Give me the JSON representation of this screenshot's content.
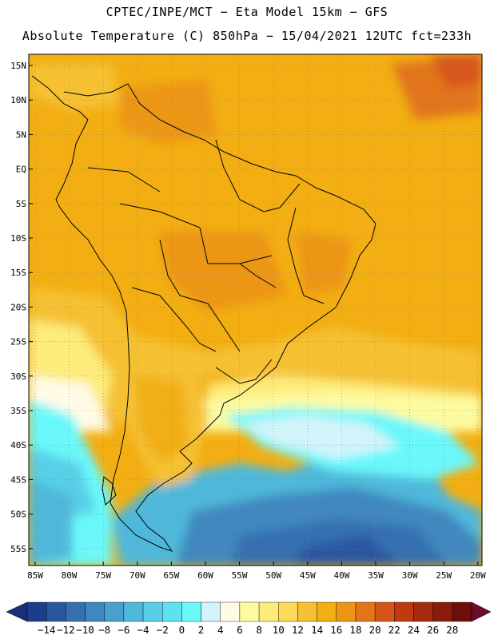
{
  "header": {
    "line1": "CPTEC/INPE/MCT −  Eta Model 15km − GFS",
    "line2": "Absolute Temperature (C) 850hPa − 15/04/2021 12UTC fct=233h"
  },
  "map": {
    "lat_labels": [
      "15N",
      "10N",
      "5N",
      "EQ",
      "5S",
      "10S",
      "15S",
      "20S",
      "25S",
      "30S",
      "35S",
      "40S",
      "45S",
      "50S",
      "55S"
    ],
    "lon_labels": [
      "85W",
      "80W",
      "75W",
      "70W",
      "65W",
      "60W",
      "55W",
      "50W",
      "45W",
      "40W",
      "35W",
      "30W",
      "25W",
      "20W"
    ]
  },
  "colorbar": {
    "labels": [
      "-14",
      "-12",
      "-10",
      "-8",
      "-6",
      "-4",
      "-2",
      "0",
      "2",
      "4",
      "6",
      "8",
      "10",
      "12",
      "14",
      "16",
      "18",
      "20",
      "22",
      "24",
      "26",
      "28"
    ],
    "colors": [
      "#1c3c8c",
      "#2a56a0",
      "#3670b0",
      "#3f88bf",
      "#48a0cc",
      "#50b8da",
      "#58cfe6",
      "#5de3f0",
      "#6af8fa",
      "#d2f4fa",
      "#fffbe6",
      "#fdfba0",
      "#fdeb7a",
      "#fbd95a",
      "#f5c132",
      "#f2ae12",
      "#ec9616",
      "#e2741a",
      "#d6561a",
      "#c03a10",
      "#a62a0e",
      "#8a1c0c",
      "#6e0e0a"
    ]
  }
}
